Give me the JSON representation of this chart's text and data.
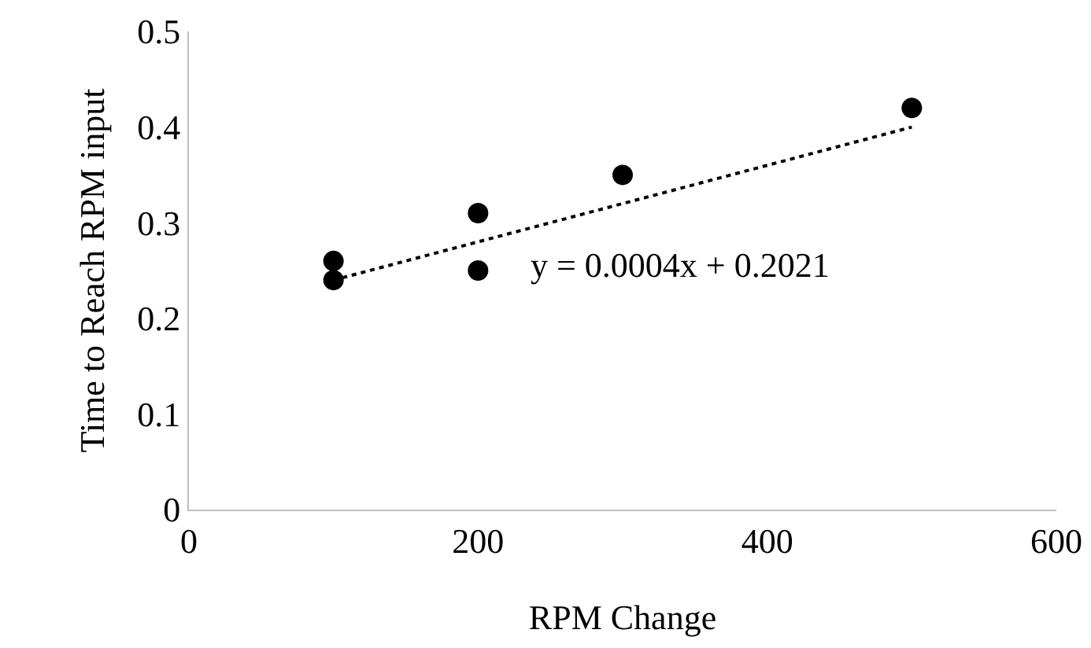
{
  "chart_data": {
    "type": "scatter",
    "xlabel": "RPM Change",
    "ylabel": "Time to Reach RPM input",
    "xlim": [
      0,
      600
    ],
    "xticks": [
      0,
      200,
      400,
      600
    ],
    "ylim": [
      0,
      0.5
    ],
    "yticks": [
      0,
      0.1,
      0.2,
      0.3,
      0.4,
      0.5
    ],
    "grid": false,
    "marker": "circle",
    "series": [
      {
        "color": "#000000",
        "x": [
          100,
          100,
          200,
          200,
          300,
          500
        ],
        "values": [
          0.26,
          0.24,
          0.31,
          0.25,
          0.35,
          0.42
        ]
      },
      {
        "type": "line",
        "color": "#000000",
        "line_style": "dotted",
        "marker": "none",
        "x": [
          100,
          500
        ],
        "values": [
          0.24,
          0.4
        ]
      }
    ],
    "annotations": [
      "y = 0.0004x + 0.2021"
    ]
  }
}
